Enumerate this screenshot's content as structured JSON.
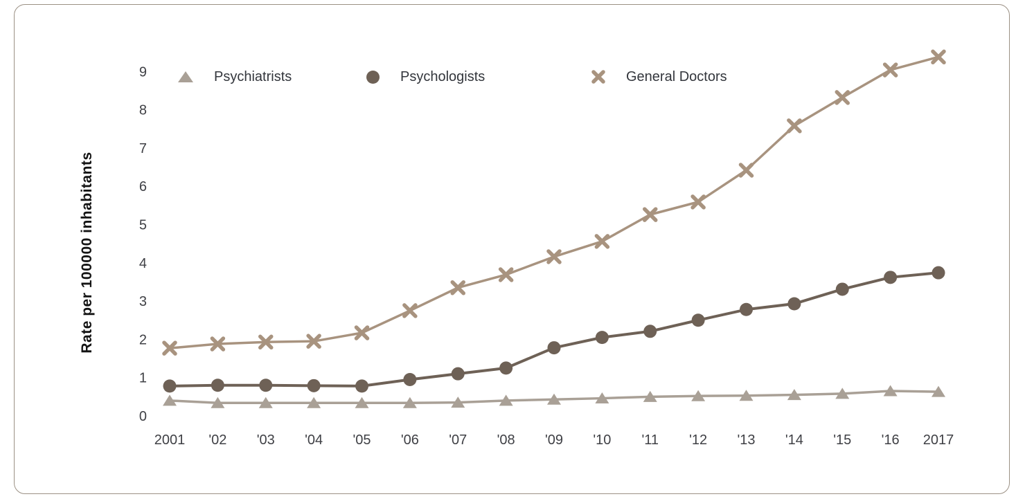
{
  "panel": {
    "background": "#ffffff",
    "border_color": "#9b9084"
  },
  "chart_data": {
    "type": "line",
    "title": "",
    "xlabel": "",
    "ylabel": "Rate per 100000 inhabitants",
    "x_categories": [
      "2001",
      "'02",
      "'03",
      "'04",
      "'05",
      "'06",
      "'07",
      "'08",
      "'09",
      "'10",
      "'11",
      "'12",
      "'13",
      "'14",
      "'15",
      "'16",
      "2017"
    ],
    "y_ticks": [
      0,
      1,
      2,
      3,
      4,
      5,
      6,
      7,
      8,
      9
    ],
    "ylim": [
      0,
      9.6
    ],
    "grid": false,
    "legend_position": "top-inside",
    "series": [
      {
        "name": "Psychiatrists",
        "marker": "triangle",
        "color": "#a9a096",
        "values": [
          0.4,
          0.34,
          0.34,
          0.34,
          0.34,
          0.34,
          0.35,
          0.4,
          0.43,
          0.46,
          0.5,
          0.52,
          0.53,
          0.55,
          0.58,
          0.65,
          0.63
        ]
      },
      {
        "name": "Psychologists",
        "marker": "circle",
        "color": "#6e6156",
        "values": [
          0.78,
          0.8,
          0.8,
          0.79,
          0.78,
          0.95,
          1.1,
          1.25,
          1.78,
          2.05,
          2.21,
          2.5,
          2.78,
          2.93,
          3.31,
          3.62,
          3.74
        ]
      },
      {
        "name": "General Doctors",
        "marker": "x",
        "color": "#a8937f",
        "values": [
          1.77,
          1.88,
          1.93,
          1.95,
          2.17,
          2.75,
          3.35,
          3.69,
          4.16,
          4.56,
          5.26,
          5.59,
          6.42,
          7.58,
          8.32,
          9.04,
          9.38
        ]
      }
    ],
    "axis_text_color": "#3f4045"
  }
}
